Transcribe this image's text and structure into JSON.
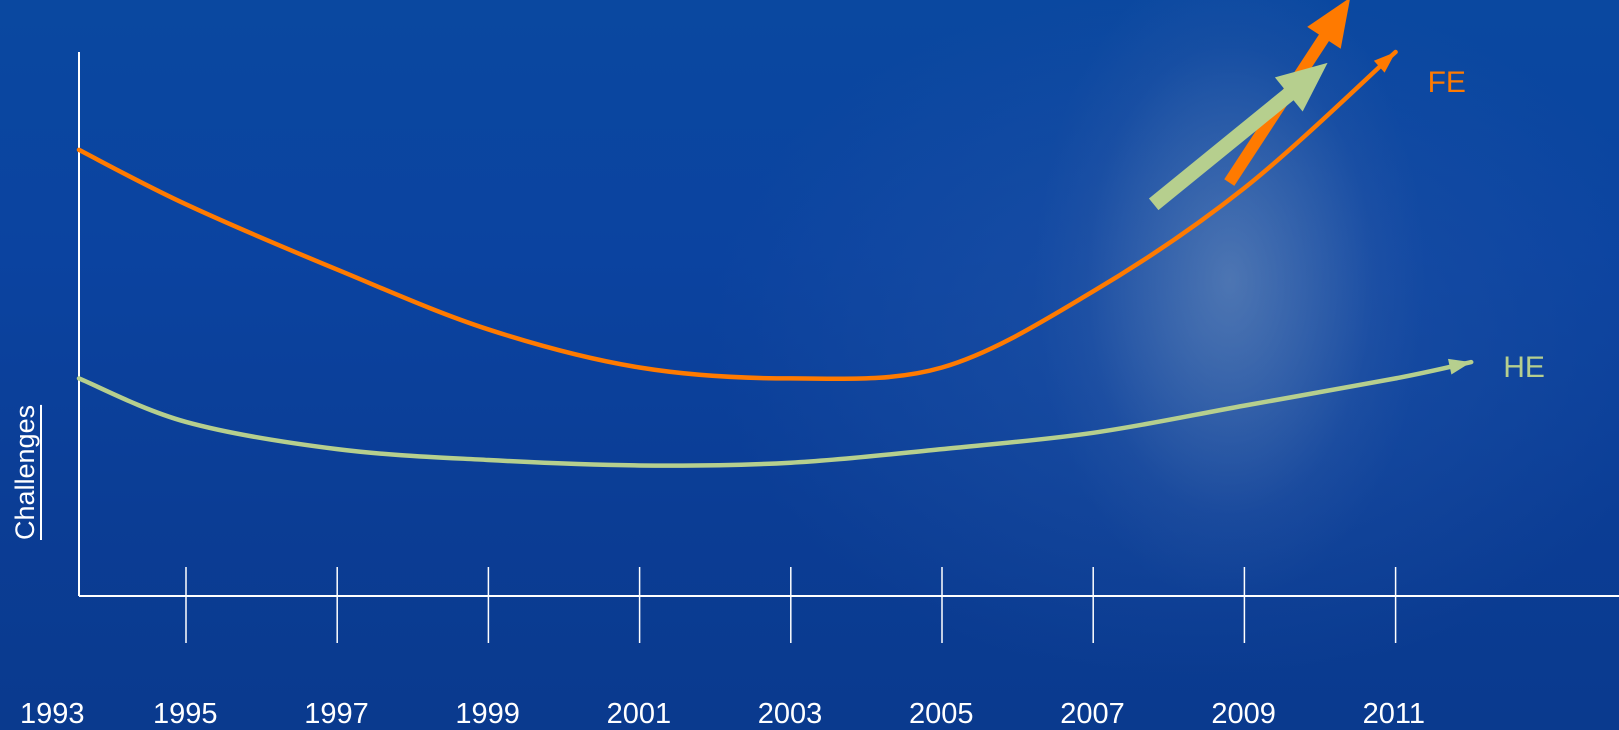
{
  "chart_data": {
    "type": "line",
    "ylabel": "Challenges",
    "x_ticks": [
      "1993",
      "1995",
      "1997",
      "1999",
      "2001",
      "2003",
      "2005",
      "2007",
      "2009",
      "2011"
    ],
    "grid": false,
    "series": [
      {
        "name": "FE",
        "color": "#ff7a00",
        "points": [
          [
            1993,
            0.82
          ],
          [
            1995,
            0.72
          ],
          [
            1997,
            0.6
          ],
          [
            1999,
            0.49
          ],
          [
            2001,
            0.42
          ],
          [
            2003,
            0.4
          ],
          [
            2005,
            0.42
          ],
          [
            2007,
            0.56
          ],
          [
            2009,
            0.75
          ],
          [
            2011,
            1.0
          ]
        ]
      },
      {
        "name": "HE",
        "color": "#b6cf8e",
        "points": [
          [
            1993,
            0.4
          ],
          [
            1995,
            0.32
          ],
          [
            1997,
            0.27
          ],
          [
            1999,
            0.25
          ],
          [
            2001,
            0.24
          ],
          [
            2003,
            0.245
          ],
          [
            2005,
            0.27
          ],
          [
            2007,
            0.3
          ],
          [
            2009,
            0.35
          ],
          [
            2011,
            0.4
          ],
          [
            2012,
            0.43
          ]
        ]
      }
    ],
    "annotations": [
      {
        "type": "arrow",
        "color": "#ff7a00",
        "from": [
          2008.8,
          0.76
        ],
        "to": [
          2010.4,
          1.1
        ]
      },
      {
        "type": "arrow",
        "color": "#b6cf8e",
        "from": [
          2007.8,
          0.72
        ],
        "to": [
          2010.1,
          0.98
        ]
      }
    ]
  }
}
